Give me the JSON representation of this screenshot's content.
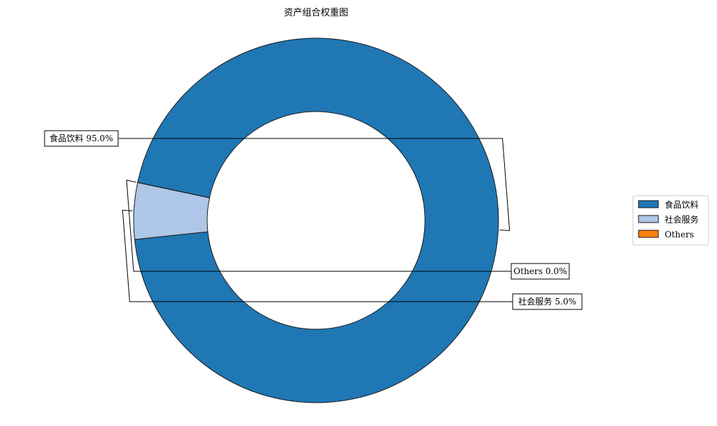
{
  "chart_data": {
    "type": "pie",
    "style": "donut",
    "title": "资产组合权重图",
    "slices": [
      {
        "label": "食品饮料",
        "value": 95.0,
        "display": "食品饮料 95.0%",
        "color": "#1f77b4"
      },
      {
        "label": "社会服务",
        "value": 5.0,
        "display": "社会服务 5.0%",
        "color": "#aec7e8"
      },
      {
        "label": "Others",
        "value": 0.0,
        "display": "Others 0.0%",
        "color": "#ff7f0e"
      }
    ],
    "legend": {
      "placement": "right",
      "entries": [
        "食品饮料",
        "社会服务",
        "Others"
      ]
    }
  }
}
